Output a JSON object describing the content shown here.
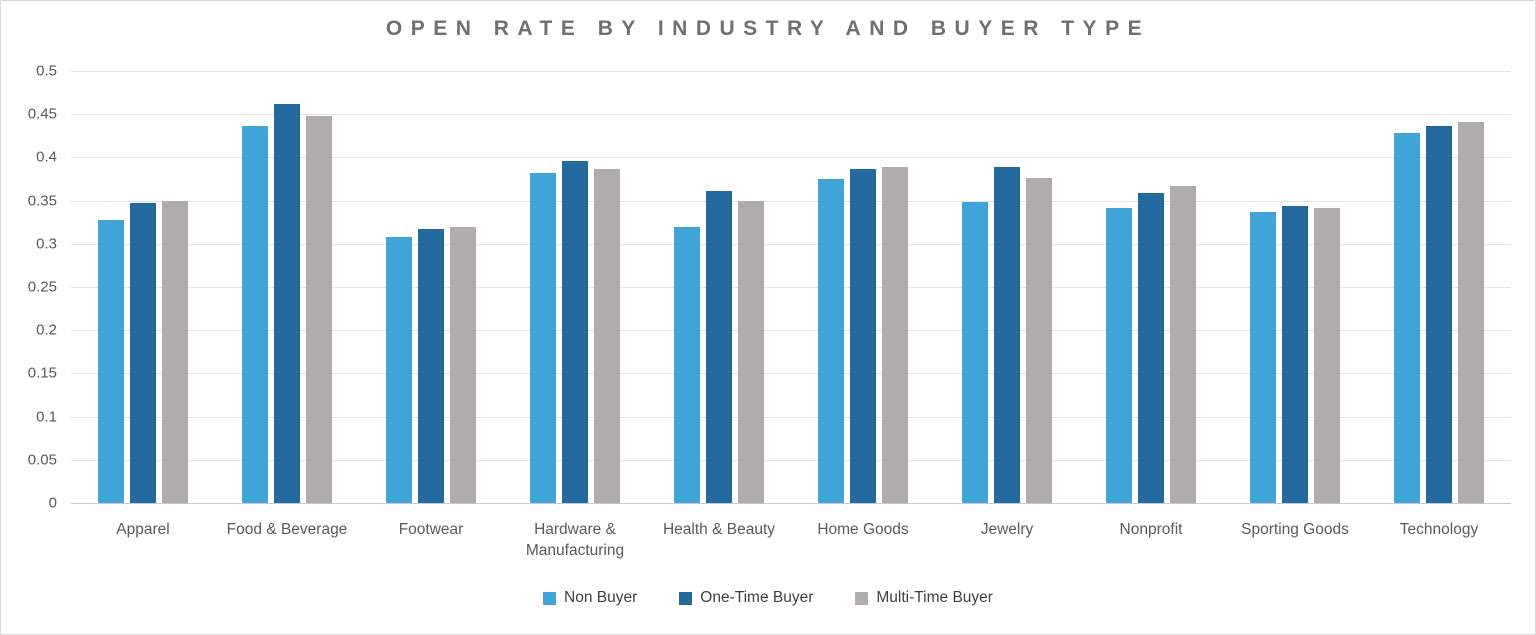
{
  "chart_data": {
    "type": "bar",
    "title": "OPEN RATE BY INDUSTRY AND BUYER TYPE",
    "xlabel": "",
    "ylabel": "",
    "categories": [
      "Apparel",
      "Food & Beverage",
      "Footwear",
      "Hardware & Manufacturing",
      "Health & Beauty",
      "Home Goods",
      "Jewelry",
      "Nonprofit",
      "Sporting Goods",
      "Technology"
    ],
    "series": [
      {
        "name": "Non Buyer",
        "color": "#41a4d9",
        "values": [
          0.327,
          0.436,
          0.308,
          0.382,
          0.319,
          0.375,
          0.348,
          0.342,
          0.337,
          0.428
        ]
      },
      {
        "name": "One-Time Buyer",
        "color": "#236a9e",
        "values": [
          0.347,
          0.462,
          0.317,
          0.396,
          0.361,
          0.387,
          0.389,
          0.359,
          0.344,
          0.436
        ]
      },
      {
        "name": "Multi-Time Buyer",
        "color": "#afacab",
        "values": [
          0.349,
          0.448,
          0.319,
          0.387,
          0.349,
          0.389,
          0.376,
          0.367,
          0.341,
          0.441
        ]
      }
    ],
    "ylim": [
      0,
      0.5
    ],
    "yticks": [
      {
        "label": "0",
        "value": 0
      },
      {
        "label": "0.05",
        "value": 0.05
      },
      {
        "label": "0.1",
        "value": 0.1
      },
      {
        "label": "0.15",
        "value": 0.15
      },
      {
        "label": "0.2",
        "value": 0.2
      },
      {
        "label": "0.25",
        "value": 0.25
      },
      {
        "label": "0.3",
        "value": 0.3
      },
      {
        "label": "0.35",
        "value": 0.35
      },
      {
        "label": "0.4",
        "value": 0.4
      },
      {
        "label": "0.45",
        "value": 0.45
      },
      {
        "label": "0.5",
        "value": 0.5
      }
    ],
    "grid": "horizontal",
    "legend_position": "bottom"
  }
}
